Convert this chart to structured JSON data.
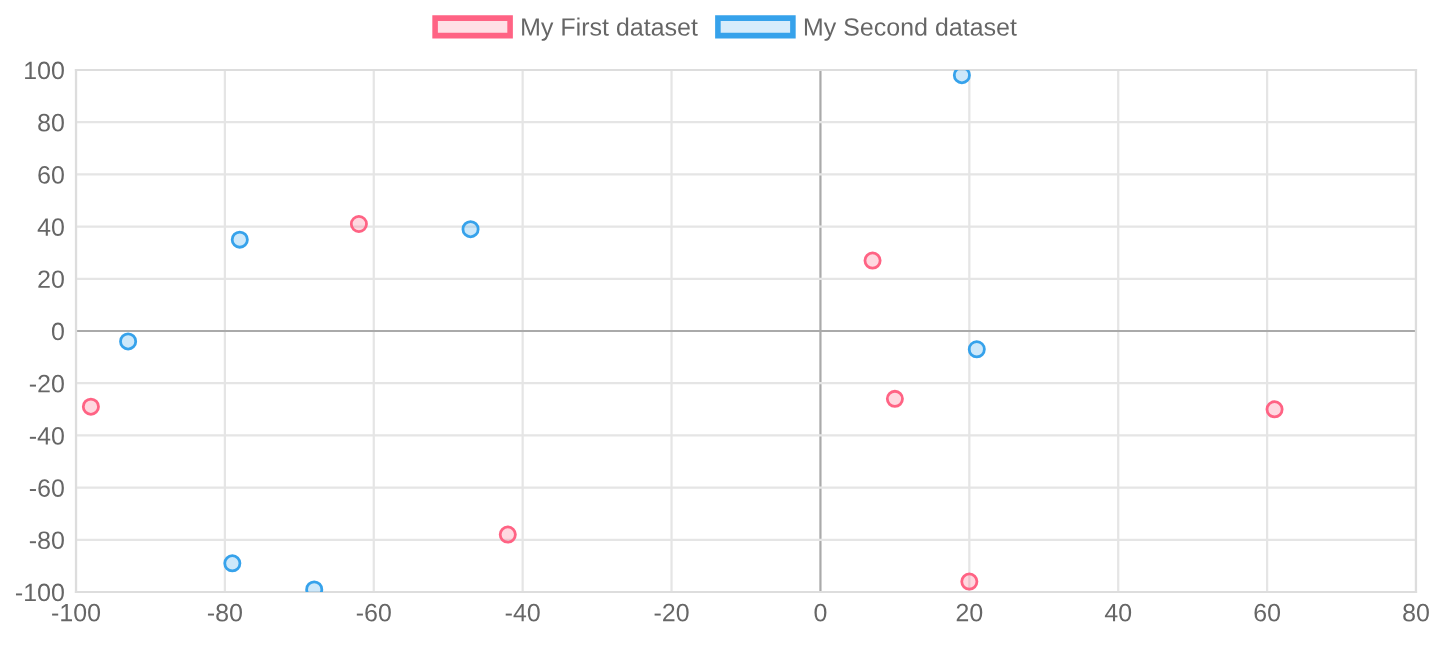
{
  "chart_data": {
    "type": "scatter",
    "xlim": [
      -100,
      80
    ],
    "xticks": [
      -100,
      -80,
      -60,
      -40,
      -20,
      0,
      20,
      40,
      60,
      80
    ],
    "ylim": [
      -100,
      100
    ],
    "yticks": [
      -100,
      -80,
      -60,
      -40,
      -20,
      0,
      20,
      40,
      60,
      80,
      100
    ],
    "grid": true,
    "legend": "top",
    "marker": "circle",
    "series": [
      {
        "name": "My First dataset",
        "color": "#ff6384",
        "x": [
          -62,
          7,
          10,
          61,
          -42,
          20,
          -98
        ],
        "values": [
          41,
          27,
          -26,
          -30,
          -78,
          -96,
          -29
        ]
      },
      {
        "name": "My Second dataset",
        "color": "#36a2eb",
        "x": [
          19,
          -78,
          -47,
          -93,
          21,
          -79,
          -68
        ],
        "values": [
          98,
          35,
          39,
          -4,
          -7,
          -89,
          -99
        ]
      }
    ]
  }
}
